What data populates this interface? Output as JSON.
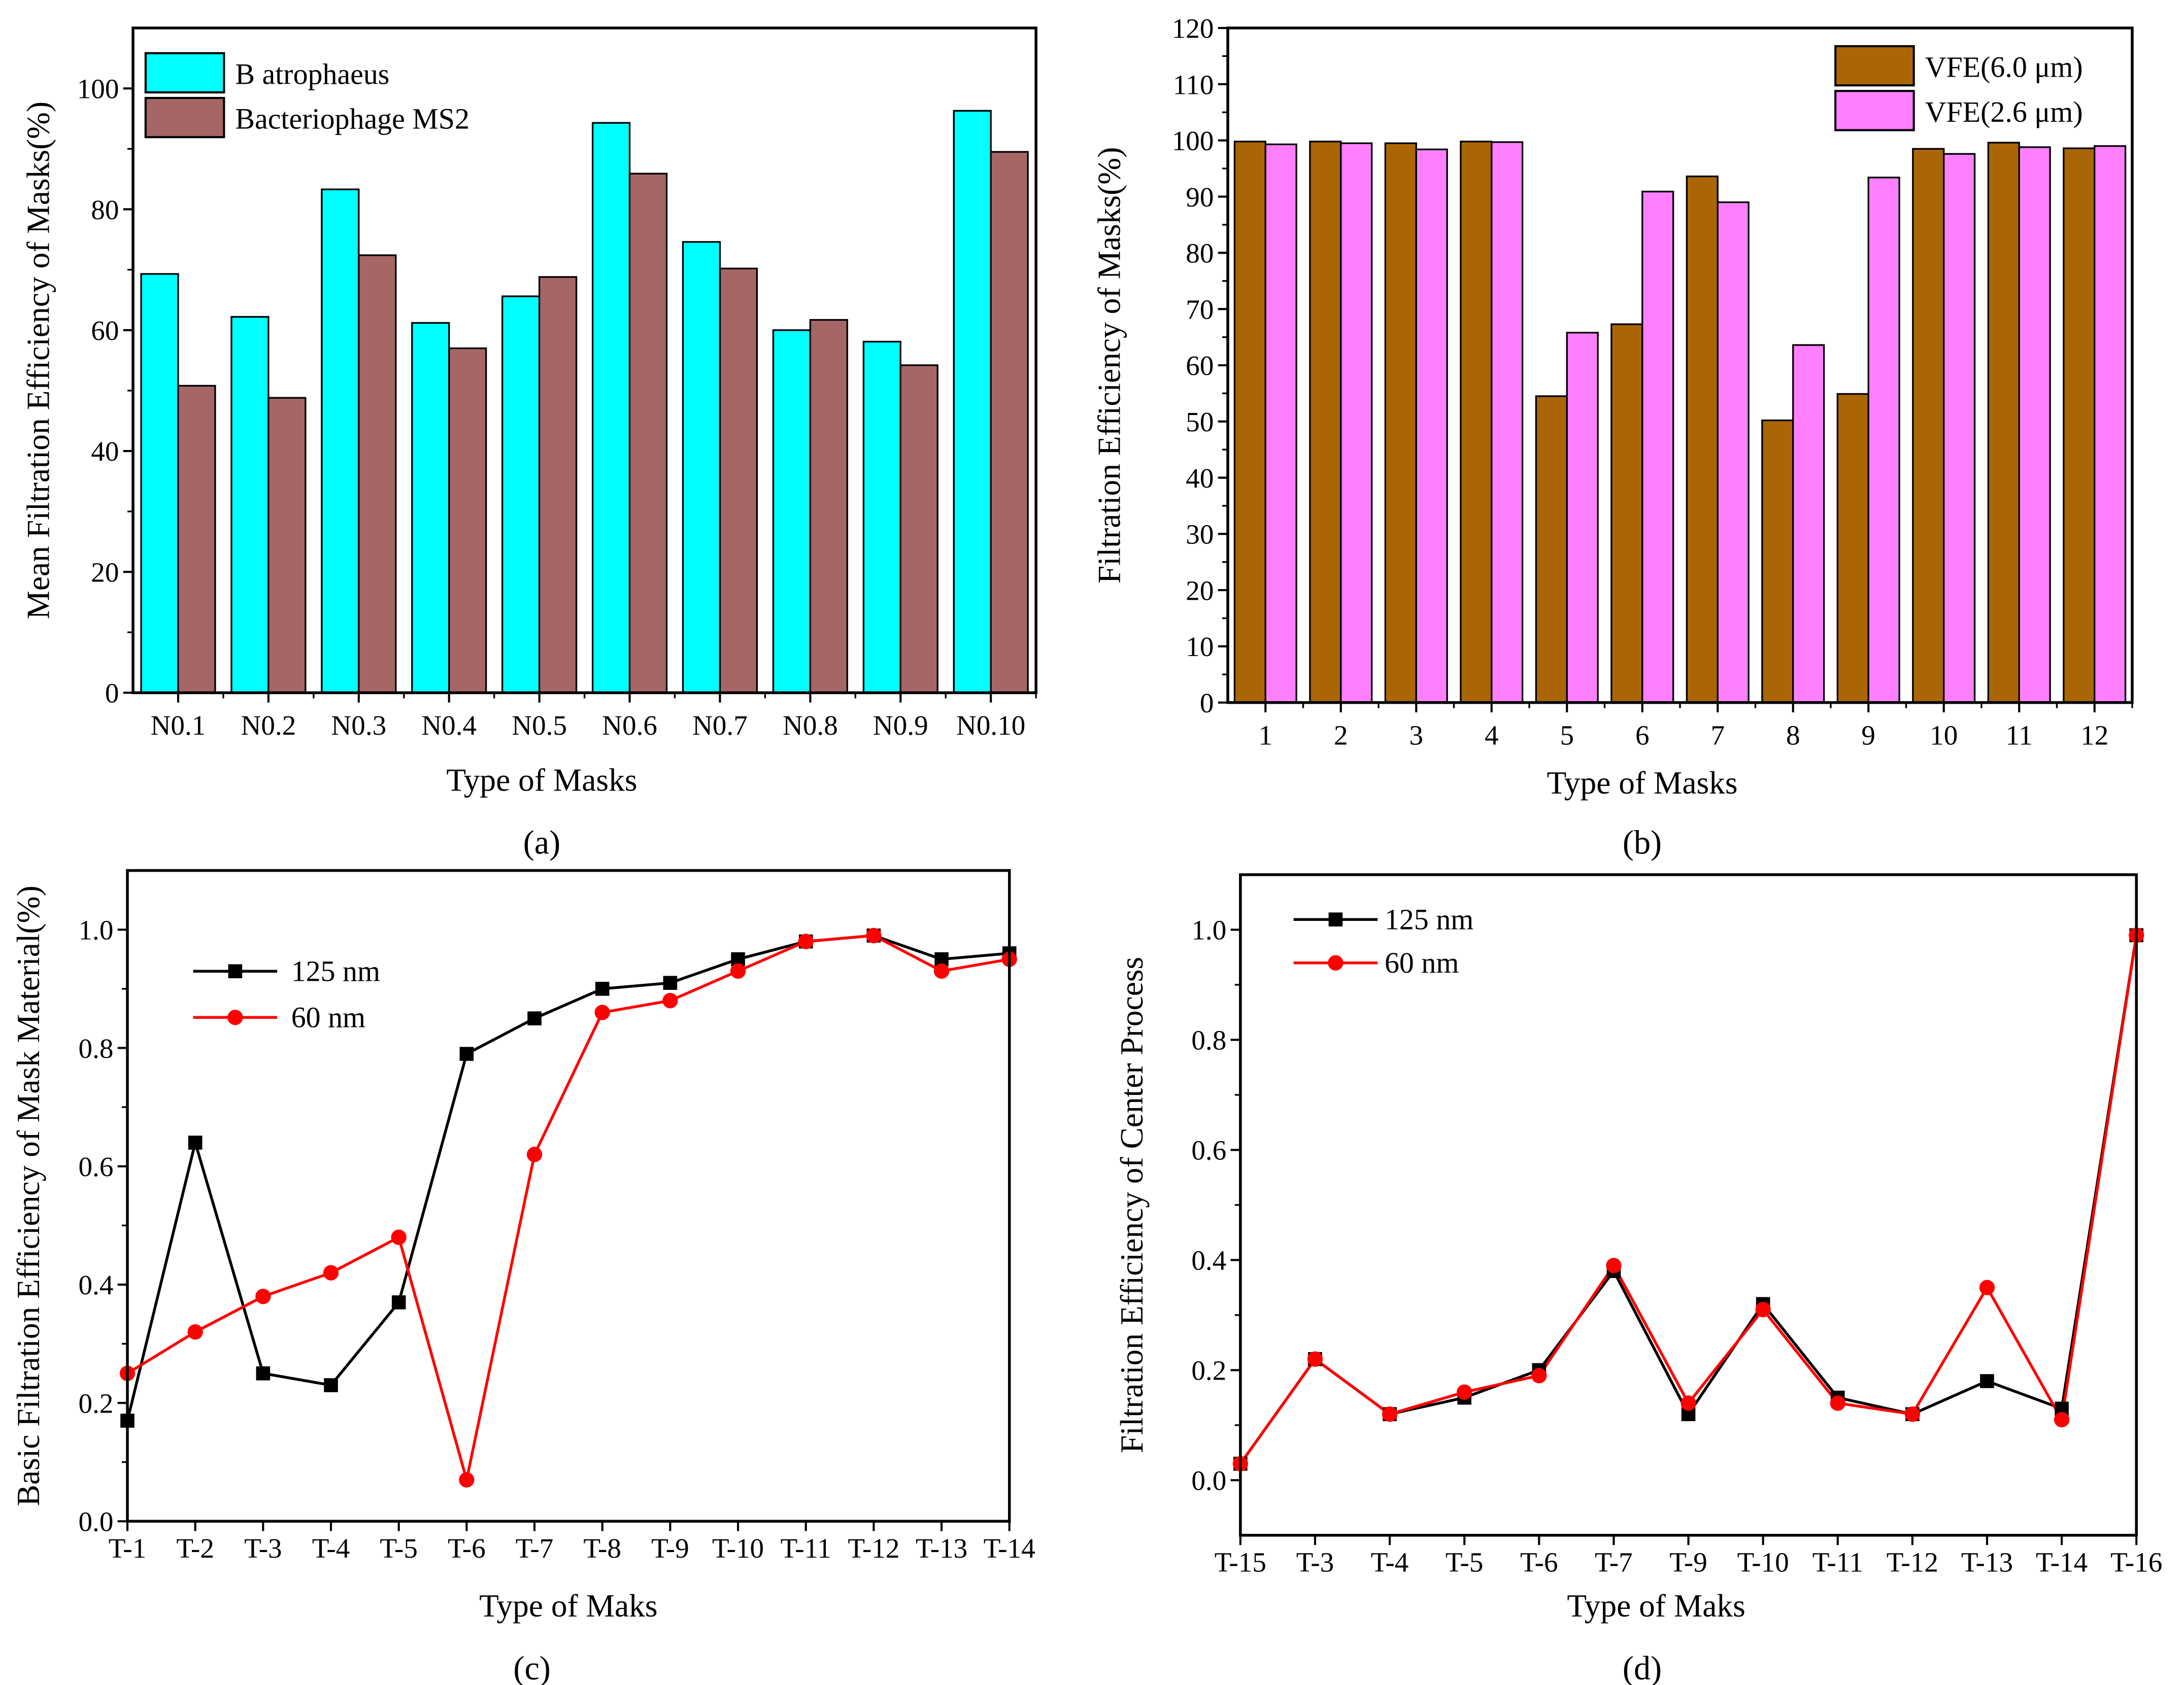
{
  "chart_data": [
    {
      "panel": "(a)",
      "type": "bar",
      "xlabel": "Type of Masks",
      "ylabel": "Mean Filtration Efficiency of  Masks(%)",
      "ylim": [
        0,
        110
      ],
      "yticks": [
        0,
        20,
        40,
        60,
        80,
        100
      ],
      "legend_position": "top-left",
      "categories": [
        "N0.1",
        "N0.2",
        "N0.3",
        "N0.4",
        "N0.5",
        "N0.6",
        "N0.7",
        "N0.8",
        "N0.9",
        "N0.10"
      ],
      "series": [
        {
          "name": "B atrophaeus",
          "color": "#00FFFF",
          "values": [
            69.3,
            62.2,
            83.3,
            61.2,
            65.6,
            94.3,
            74.6,
            60.0,
            58.1,
            96.3
          ]
        },
        {
          "name": "Bacteriophage MS2",
          "color": "#A66666",
          "values": [
            50.8,
            48.8,
            72.4,
            57.0,
            68.8,
            85.9,
            70.2,
            61.7,
            54.2,
            89.5
          ]
        }
      ]
    },
    {
      "panel": "(b)",
      "type": "bar",
      "xlabel": "Type of Masks",
      "ylabel": "Filtration Efficiency of  Masks(%)",
      "ylim": [
        0,
        120
      ],
      "yticks": [
        0,
        10,
        20,
        30,
        40,
        50,
        60,
        70,
        80,
        90,
        100,
        110,
        120
      ],
      "legend_position": "top-right",
      "categories": [
        "1",
        "2",
        "3",
        "4",
        "5",
        "6",
        "7",
        "8",
        "9",
        "10",
        "11",
        "12"
      ],
      "series": [
        {
          "name": "VFE(6.0 μm)",
          "color": "#AA6605",
          "values": [
            99.8,
            99.8,
            99.5,
            99.8,
            54.5,
            67.3,
            93.6,
            50.2,
            54.9,
            98.5,
            99.6,
            98.6
          ]
        },
        {
          "name": "VFE(2.6 μm)",
          "color": "#FF80FF",
          "values": [
            99.3,
            99.5,
            98.4,
            99.7,
            65.8,
            90.9,
            89.0,
            63.6,
            93.4,
            97.6,
            98.8,
            99.0
          ]
        }
      ]
    },
    {
      "panel": "(c)",
      "type": "line",
      "xlabel": "Type of Maks",
      "ylabel": "Basic Filtration Efficiency of Mask Material(%)",
      "ylim": [
        0,
        1.1
      ],
      "yticks": [
        0.0,
        0.2,
        0.4,
        0.6,
        0.8,
        1.0
      ],
      "legend_position": "top-left",
      "categories": [
        "T-1",
        "T-2",
        "T-3",
        "T-4",
        "T-5",
        "T-6",
        "T-7",
        "T-8",
        "T-9",
        "T-10",
        "T-11",
        "T-12",
        "T-13",
        "T-14"
      ],
      "series": [
        {
          "name": "125 nm",
          "color": "#000000",
          "marker": "square",
          "values": [
            0.17,
            0.64,
            0.25,
            0.23,
            0.37,
            0.79,
            0.85,
            0.9,
            0.91,
            0.95,
            0.98,
            0.99,
            0.95,
            0.96
          ]
        },
        {
          "name": "60 nm",
          "color": "#FF0000",
          "marker": "circle",
          "values": [
            0.25,
            0.32,
            0.38,
            0.42,
            0.48,
            0.07,
            0.62,
            0.86,
            0.88,
            0.93,
            0.98,
            0.99,
            0.93,
            0.95
          ]
        }
      ]
    },
    {
      "panel": "(d)",
      "type": "line",
      "xlabel": "Type of Maks",
      "ylabel": "Filtration Efficiency of Center Process",
      "ylim": [
        -0.1,
        1.1
      ],
      "yticks": [
        0.0,
        0.2,
        0.4,
        0.6,
        0.8,
        1.0
      ],
      "legend_position": "top-left",
      "categories": [
        "T-15",
        "T-3",
        "T-4",
        "T-5",
        "T-6",
        "T-7",
        "T-9",
        "T-10",
        "T-11",
        "T-12",
        "T-13",
        "T-14",
        "T-16"
      ],
      "series": [
        {
          "name": "125 nm",
          "color": "#000000",
          "marker": "square",
          "values": [
            0.03,
            0.22,
            0.12,
            0.15,
            0.2,
            0.38,
            0.12,
            0.32,
            0.15,
            0.12,
            0.18,
            0.13,
            0.99
          ]
        },
        {
          "name": "60 nm",
          "color": "#FF0000",
          "marker": "circle",
          "values": [
            0.03,
            0.22,
            0.12,
            0.16,
            0.19,
            0.39,
            0.14,
            0.31,
            0.14,
            0.12,
            0.35,
            0.11,
            0.99
          ]
        }
      ]
    }
  ]
}
